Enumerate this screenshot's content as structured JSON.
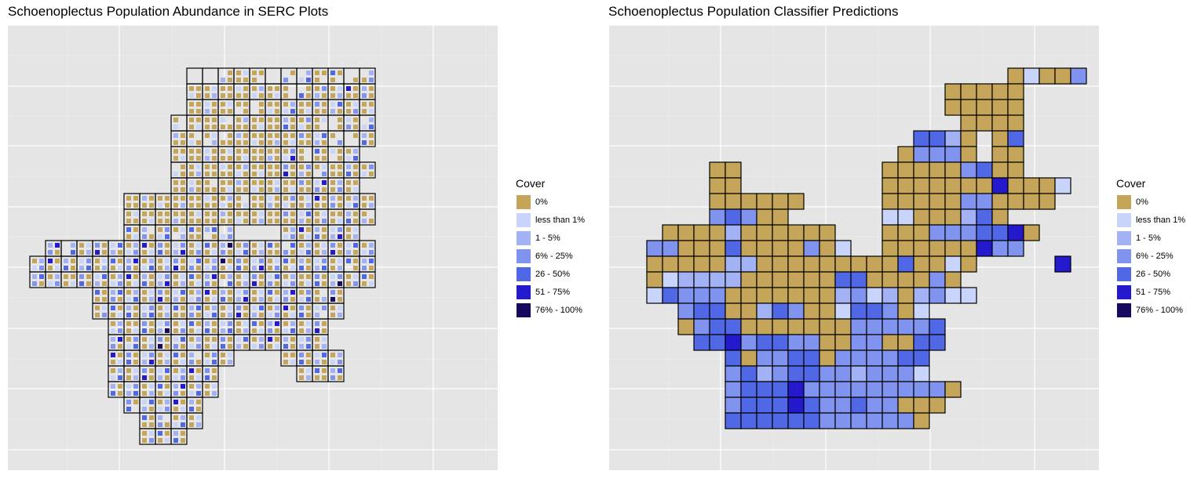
{
  "chart_data": [
    {
      "type": "heatmap",
      "title": "Schoenoplectus Population Abundance in SERC Plots",
      "xlabel": "",
      "ylabel": "",
      "grid": true,
      "legend": {
        "title": "Cover",
        "position": "right",
        "labels": [
          "0%",
          "less than 1%",
          "1 - 5%",
          "6% - 25%",
          "26 - 50%",
          "51 - 75%",
          "76% - 100%"
        ],
        "colors": [
          "#c4a55a",
          "#c9d4fa",
          "#a3b2f5",
          "#7f93ef",
          "#5068e6",
          "#2419cc",
          "#16095e"
        ]
      },
      "plot_rows": [
        "10:21:22",
        "10:16:22",
        "10:16:22",
        "9:16:22",
        "9:17:22",
        "9:15:21",
        "9:15:22",
        "9:15:21",
        "6:14:22",
        "6:22",
        "6:13:16:21",
        "1:15:22",
        "0:15:22",
        "0:14:22",
        "4:13:20",
        "4:13:20",
        "5:14:19",
        "5:14:19",
        "5:13:16:20",
        "5:12:17:20",
        "5:12",
        "6:11",
        "7:11",
        "7:10"
      ],
      "sub_cells": "0000000001111111111000000110011111101110000101111111111111111111111111111100011111111111111111111111111111111011001111111111111111111111111111111100111111111101111111111111111111111110001111110111111111011011011111111111111111111111111110010010111111111111111111111111111111111111110011111011111101111111111111111111111111111111111110111111111111111111111111011111111111111111111111111111111111111111111111111111111111111111110111111111111111111111111111111111111111111111111111111111111111111111111111111111111111111111110111111101111110111111101101111111111111111111111111110011111111111111111111111111111111111111111111111111111101111111111111111111111111111111111111111111111111111111111111111111111111111111111111111111111111111111101111111111111111111111111111111111111111111111111111111011111111111111111111111111111111111111111111111111111111111111111111111111111111111111111111111101111111111111111111111111111111111111111111111111111111111111111011111111111111111111111111111111111111111111111111111111111111111111111111111111111111111111111111111111111111111111111111111111111111111101111111111111111111111111111111111111111111111111111111111111111111111111111111111111111111111110111111111111111111111101111111111111111111111111111111111111111111111111111111111111011011111111111111111111111111111111111101111111111111111111111111111111111111111111111111111111111111111101111111111111111111111111111111111111111111111111101111111111111111111111111111111111111111111111111111111111111111111111111111111111111111111111111111111111111111111111111111111111111111111111111111111111111111111111111111111111111111111111111111111111111111111111111111111111111111111111111111111111111111111111111111111111111111111111111111111111111111111111111111111111111111111110111111111111111111111111111111111111011011111111111111111111111111111111111111101101111111111111111111111111111111111111111111111111111111111111111111111111111111111111111111111111111111111111111111111110110111111111111111111111111111111111111111110110111111111111111111111111111111111111111111111111111111111111111111111111111111111111111111111111111111111111111111111111111111111111111111111111111111111111111111111111111111111111111111111111111111111111110001011111111111110111110111011101111111100011011011010100101111110100011110"
    },
    {
      "type": "heatmap",
      "title": "Schoenoplectus Population Classifier Predictions",
      "xlabel": "",
      "ylabel": "",
      "grid": true,
      "legend": {
        "title": "Cover",
        "position": "right",
        "labels": [
          "0%",
          "less than 1%",
          "1 - 5%",
          "6% - 25%",
          "26 - 50%",
          "51 - 75%",
          "76% - 100%"
        ],
        "colors": [
          "#c4a55a",
          "#c9d4fa",
          "#a3b2f5",
          "#7f93ef",
          "#5068e6",
          "#2419cc",
          "#16095e"
        ]
      },
      "rows": [
        "________________________01003_",
        "____________________00000_____",
        "____________________00000_____",
        "_____________________0000_____",
        "__________________4420_04_____",
        "_________________03330_00_____",
        "_____00_________000003400_____",
        "_____00_________000000050001__",
        "_____000000_____00000330000___",
        "_____34300______11000240______",
        "__00002000000___0003334450____",
        "_3300040000301__000000533_____",
        "_000002200000000040010_____5__",
        "_01222200000044000030_________",
        "_143330000000231202311________",
        "___3440024300144301___________",
        "___03440000000333334__________",
        "____4453443300330044__________",
        "______4033440333344___________",
        "______3423443323331___________",
        "______344453333333330_________",
        "______34445433433000__________",
        "______4444443333330___________"
      ]
    }
  ],
  "left": {
    "title": "Schoenoplectus Population Abundance in SERC Plots",
    "legend_title": "Cover",
    "legend_labels": [
      "0%",
      "less than 1%",
      "1 - 5%",
      "6% - 25%",
      "26 - 50%",
      "51 - 75%",
      "76% - 100%"
    ]
  },
  "right": {
    "title": "Schoenoplectus Population Classifier Predictions",
    "legend_title": "Cover",
    "legend_labels": [
      "0%",
      "less than 1%",
      "1 - 5%",
      "6% - 25%",
      "26 - 50%",
      "51 - 75%",
      "76% - 100%"
    ]
  },
  "colors": {
    "panel_background": "#e5e5e5",
    "grid_major": "#ffffff",
    "grid_minor": "#f0f0f0",
    "plot_border": "#000000"
  }
}
